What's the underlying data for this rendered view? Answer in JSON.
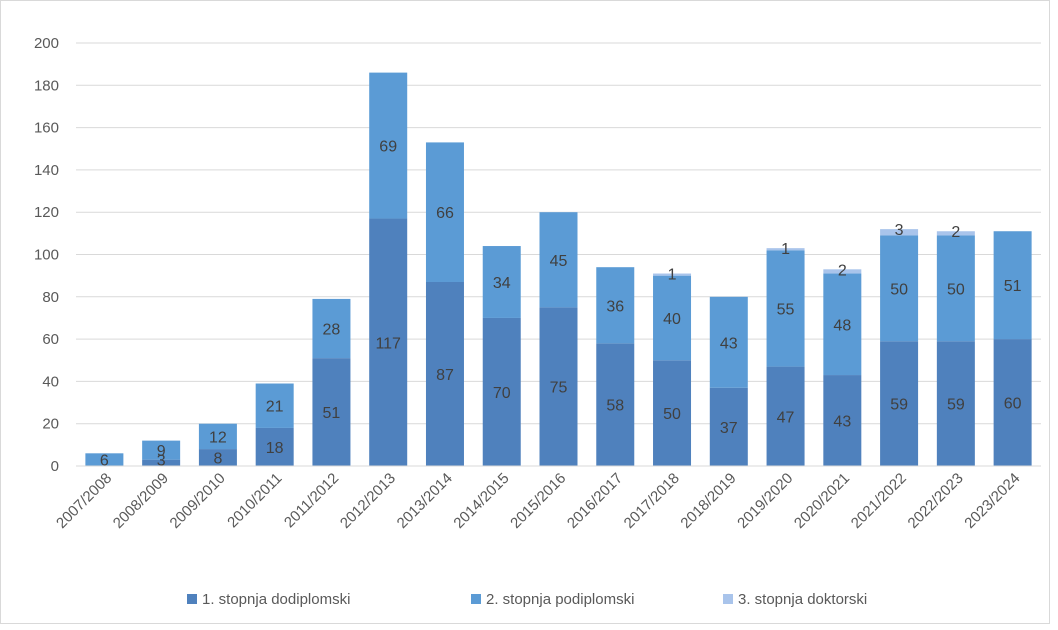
{
  "chart_data": {
    "type": "bar",
    "stacked": true,
    "categories": [
      "2007/2008",
      "2008/2009",
      "2009/2010",
      "2010/2011",
      "2011/2012",
      "2012/2013",
      "2013/2014",
      "2014/2015",
      "2015/2016",
      "2016/2017",
      "2017/2018",
      "2018/2019",
      "2019/2020",
      "2020/2021",
      "2021/2022",
      "2022/2023",
      "2023/2024"
    ],
    "series": [
      {
        "name": "1. stopnja dodiplomski",
        "color": "#4f81bd",
        "values": [
          0,
          3,
          8,
          18,
          51,
          117,
          87,
          70,
          75,
          58,
          50,
          37,
          47,
          43,
          59,
          59,
          60
        ],
        "labels": [
          "",
          "3",
          "8",
          "18",
          "51",
          "117",
          "87",
          "70",
          "75",
          "58",
          "50",
          "37",
          "47",
          "43",
          "59",
          "59",
          "60"
        ]
      },
      {
        "name": "2. stopnja podiplomski",
        "color": "#5b9bd5",
        "values": [
          6,
          9,
          12,
          21,
          28,
          69,
          66,
          34,
          45,
          36,
          40,
          43,
          55,
          48,
          50,
          50,
          51
        ],
        "labels": [
          "6",
          "9",
          "12",
          "21",
          "28",
          "69",
          "66",
          "34",
          "45",
          "36",
          "40",
          "43",
          "55",
          "48",
          "50",
          "50",
          "51"
        ]
      },
      {
        "name": "3. stopnja doktorski",
        "color": "#a9c4eb",
        "values": [
          0,
          0,
          0,
          0,
          0,
          0,
          0,
          0,
          0,
          0,
          1,
          0,
          1,
          2,
          3,
          2,
          0
        ],
        "labels": [
          "",
          "",
          "",
          "",
          "",
          "",
          "",
          "",
          "",
          "",
          "1",
          "",
          "1",
          "2",
          "3",
          "2",
          ""
        ]
      }
    ],
    "ylim": [
      0,
      200
    ],
    "yticks": [
      "0",
      "20",
      "40",
      "60",
      "80",
      "100",
      "120",
      "140",
      "160",
      "180",
      "200"
    ],
    "grid": true,
    "legend_position": "bottom",
    "title": "",
    "xlabel": "",
    "ylabel": ""
  }
}
